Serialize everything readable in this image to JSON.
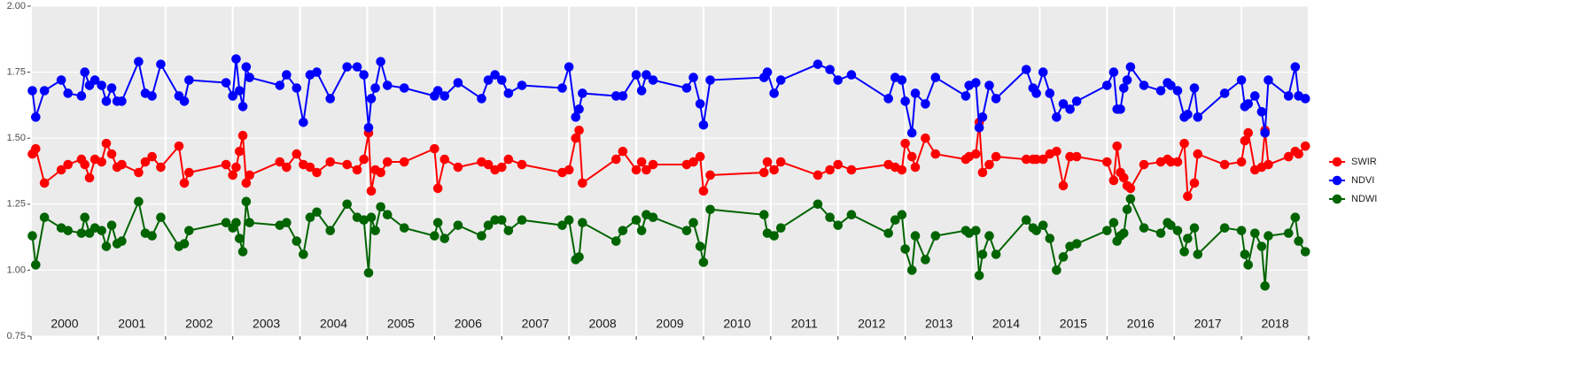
{
  "chart_data": {
    "type": "line",
    "x": [
      2000.02,
      2000.07,
      2000.2,
      2000.45,
      2000.55,
      2000.75,
      2000.8,
      2000.87,
      2000.95,
      2001.05,
      2001.12,
      2001.2,
      2001.28,
      2001.35,
      2001.6,
      2001.7,
      2001.8,
      2001.93,
      2002.2,
      2002.28,
      2002.35,
      2002.9,
      2003.0,
      2003.05,
      2003.1,
      2003.15,
      2003.2,
      2003.25,
      2003.7,
      2003.8,
      2003.95,
      2004.05,
      2004.15,
      2004.25,
      2004.45,
      2004.7,
      2004.85,
      2004.95,
      2005.02,
      2005.06,
      2005.12,
      2005.2,
      2005.3,
      2005.55,
      2006.0,
      2006.05,
      2006.15,
      2006.35,
      2006.7,
      2006.8,
      2006.9,
      2007.0,
      2007.1,
      2007.3,
      2007.9,
      2008.0,
      2008.1,
      2008.15,
      2008.2,
      2008.7,
      2008.8,
      2009.0,
      2009.08,
      2009.15,
      2009.25,
      2009.75,
      2009.85,
      2009.95,
      2010.0,
      2010.1,
      2010.9,
      2010.95,
      2011.05,
      2011.15,
      2011.7,
      2011.88,
      2012.0,
      2012.2,
      2012.75,
      2012.85,
      2012.95,
      2013.0,
      2013.1,
      2013.15,
      2013.3,
      2013.45,
      2013.9,
      2013.95,
      2014.05,
      2014.1,
      2014.15,
      2014.25,
      2014.35,
      2014.8,
      2014.9,
      2014.95,
      2015.05,
      2015.15,
      2015.25,
      2015.35,
      2015.45,
      2015.55,
      2016.0,
      2016.1,
      2016.15,
      2016.2,
      2016.25,
      2016.3,
      2016.35,
      2016.55,
      2016.8,
      2016.9,
      2016.95,
      2017.05,
      2017.15,
      2017.2,
      2017.3,
      2017.35,
      2017.75,
      2018.0,
      2018.05,
      2018.1,
      2018.2,
      2018.3,
      2018.35,
      2018.4,
      2018.7,
      2018.8,
      2018.85,
      2018.95
    ],
    "series": [
      {
        "name": "SWIR",
        "color": "#ff0000",
        "values": [
          1.44,
          1.46,
          1.33,
          1.38,
          1.4,
          1.42,
          1.4,
          1.35,
          1.42,
          1.41,
          1.48,
          1.44,
          1.39,
          1.4,
          1.37,
          1.41,
          1.43,
          1.39,
          1.47,
          1.33,
          1.37,
          1.4,
          1.36,
          1.39,
          1.45,
          1.51,
          1.33,
          1.36,
          1.41,
          1.39,
          1.44,
          1.4,
          1.39,
          1.37,
          1.41,
          1.4,
          1.38,
          1.42,
          1.52,
          1.3,
          1.38,
          1.37,
          1.41,
          1.41,
          1.46,
          1.31,
          1.42,
          1.39,
          1.41,
          1.4,
          1.38,
          1.39,
          1.42,
          1.4,
          1.37,
          1.38,
          1.5,
          1.53,
          1.33,
          1.42,
          1.45,
          1.38,
          1.41,
          1.38,
          1.4,
          1.4,
          1.41,
          1.43,
          1.3,
          1.36,
          1.37,
          1.41,
          1.38,
          1.41,
          1.36,
          1.38,
          1.4,
          1.38,
          1.4,
          1.39,
          1.38,
          1.48,
          1.43,
          1.39,
          1.5,
          1.44,
          1.42,
          1.43,
          1.44,
          1.56,
          1.37,
          1.4,
          1.43,
          1.42,
          1.42,
          1.42,
          1.42,
          1.44,
          1.45,
          1.32,
          1.43,
          1.43,
          1.41,
          1.34,
          1.47,
          1.37,
          1.35,
          1.32,
          1.31,
          1.4,
          1.41,
          1.42,
          1.41,
          1.41,
          1.48,
          1.28,
          1.33,
          1.44,
          1.4,
          1.41,
          1.49,
          1.52,
          1.38,
          1.39,
          1.53,
          1.4,
          1.43,
          1.45,
          1.44,
          1.47
        ]
      },
      {
        "name": "NDVI",
        "color": "#0000ff",
        "values": [
          1.68,
          1.58,
          1.68,
          1.72,
          1.67,
          1.66,
          1.75,
          1.7,
          1.72,
          1.7,
          1.64,
          1.69,
          1.64,
          1.64,
          1.79,
          1.67,
          1.66,
          1.78,
          1.66,
          1.64,
          1.72,
          1.71,
          1.66,
          1.8,
          1.68,
          1.62,
          1.77,
          1.73,
          1.7,
          1.74,
          1.69,
          1.56,
          1.74,
          1.75,
          1.65,
          1.77,
          1.77,
          1.74,
          1.54,
          1.65,
          1.69,
          1.79,
          1.7,
          1.69,
          1.66,
          1.68,
          1.66,
          1.71,
          1.65,
          1.72,
          1.74,
          1.72,
          1.67,
          1.7,
          1.69,
          1.77,
          1.58,
          1.61,
          1.67,
          1.66,
          1.66,
          1.74,
          1.68,
          1.74,
          1.72,
          1.69,
          1.73,
          1.63,
          1.55,
          1.72,
          1.73,
          1.75,
          1.67,
          1.72,
          1.78,
          1.76,
          1.72,
          1.74,
          1.65,
          1.73,
          1.72,
          1.64,
          1.52,
          1.67,
          1.63,
          1.73,
          1.66,
          1.7,
          1.71,
          1.54,
          1.58,
          1.7,
          1.65,
          1.76,
          1.69,
          1.67,
          1.75,
          1.67,
          1.58,
          1.63,
          1.61,
          1.64,
          1.7,
          1.75,
          1.61,
          1.61,
          1.69,
          1.72,
          1.77,
          1.7,
          1.68,
          1.71,
          1.7,
          1.68,
          1.58,
          1.59,
          1.69,
          1.58,
          1.67,
          1.72,
          1.62,
          1.63,
          1.66,
          1.6,
          1.52,
          1.72,
          1.66,
          1.77,
          1.66,
          1.65
        ]
      },
      {
        "name": "NDWI",
        "color": "#006400",
        "values": [
          1.13,
          1.02,
          1.2,
          1.16,
          1.15,
          1.14,
          1.2,
          1.14,
          1.16,
          1.15,
          1.09,
          1.17,
          1.1,
          1.11,
          1.26,
          1.14,
          1.13,
          1.2,
          1.09,
          1.1,
          1.15,
          1.18,
          1.16,
          1.18,
          1.12,
          1.07,
          1.26,
          1.18,
          1.17,
          1.18,
          1.11,
          1.06,
          1.2,
          1.22,
          1.15,
          1.25,
          1.2,
          1.19,
          0.99,
          1.2,
          1.15,
          1.24,
          1.21,
          1.16,
          1.13,
          1.18,
          1.12,
          1.17,
          1.13,
          1.17,
          1.19,
          1.19,
          1.15,
          1.19,
          1.17,
          1.19,
          1.04,
          1.05,
          1.18,
          1.11,
          1.15,
          1.19,
          1.15,
          1.21,
          1.2,
          1.15,
          1.18,
          1.09,
          1.03,
          1.23,
          1.21,
          1.14,
          1.13,
          1.16,
          1.25,
          1.2,
          1.17,
          1.21,
          1.14,
          1.19,
          1.21,
          1.08,
          1.0,
          1.13,
          1.04,
          1.13,
          1.15,
          1.14,
          1.15,
          0.98,
          1.06,
          1.13,
          1.06,
          1.19,
          1.16,
          1.15,
          1.17,
          1.12,
          1.0,
          1.05,
          1.09,
          1.1,
          1.15,
          1.18,
          1.11,
          1.13,
          1.14,
          1.23,
          1.27,
          1.16,
          1.14,
          1.18,
          1.17,
          1.15,
          1.07,
          1.12,
          1.16,
          1.06,
          1.16,
          1.15,
          1.06,
          1.02,
          1.14,
          1.09,
          0.94,
          1.13,
          1.14,
          1.2,
          1.11,
          1.07
        ]
      }
    ],
    "xlim": [
      2000,
      2019
    ],
    "xticks": [
      {
        "value": 2000,
        "label": "2000"
      },
      {
        "value": 2001,
        "label": "2001"
      },
      {
        "value": 2002,
        "label": "2002"
      },
      {
        "value": 2003,
        "label": "2003"
      },
      {
        "value": 2004,
        "label": "2004"
      },
      {
        "value": 2005,
        "label": "2005"
      },
      {
        "value": 2006,
        "label": "2006"
      },
      {
        "value": 2007,
        "label": "2007"
      },
      {
        "value": 2008,
        "label": "2008"
      },
      {
        "value": 2009,
        "label": "2009"
      },
      {
        "value": 2010,
        "label": "2010"
      },
      {
        "value": 2011,
        "label": "2011"
      },
      {
        "value": 2012,
        "label": "2012"
      },
      {
        "value": 2013,
        "label": "2013"
      },
      {
        "value": 2014,
        "label": "2014"
      },
      {
        "value": 2015,
        "label": "2015"
      },
      {
        "value": 2016,
        "label": "2016"
      },
      {
        "value": 2017,
        "label": "2017"
      },
      {
        "value": 2018,
        "label": "2018"
      }
    ],
    "ylim": [
      0.75,
      2.0
    ],
    "yticks": [
      {
        "value": 0.75,
        "label": "0.75"
      },
      {
        "value": 1,
        "label": "1.00"
      },
      {
        "value": 1.25,
        "label": "1.25"
      },
      {
        "value": 1.5,
        "label": "1.50"
      },
      {
        "value": 1.75,
        "label": "1.75"
      },
      {
        "value": 2,
        "label": "2.00"
      }
    ],
    "grid": true,
    "legend": "right"
  }
}
